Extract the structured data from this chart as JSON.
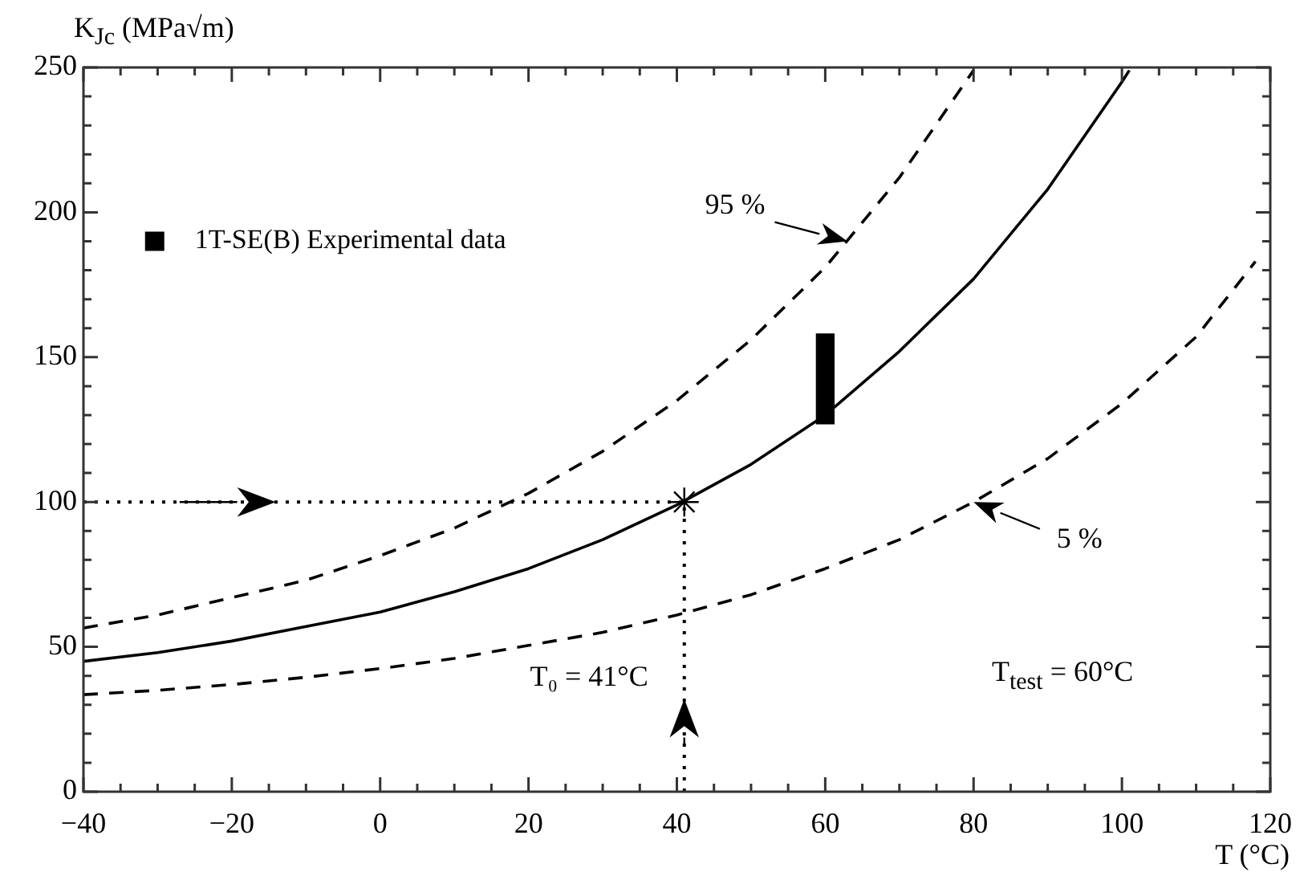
{
  "chart_data": {
    "type": "line",
    "xlabel": "T (°C)",
    "ylabel": "K$_{Jc}$ (MPa√m)",
    "xlim": [
      -40,
      120
    ],
    "ylim": [
      0,
      250
    ],
    "xticks": [
      {
        "value": -40,
        "label": "−40"
      },
      {
        "value": -35,
        "label": null
      },
      {
        "value": -30,
        "label": null
      },
      {
        "value": -25,
        "label": null
      },
      {
        "value": -20,
        "label": "−20"
      },
      {
        "value": -15,
        "label": null
      },
      {
        "value": -10,
        "label": null
      },
      {
        "value": -5,
        "label": null
      },
      0,
      {
        "value": 5,
        "label": null
      },
      {
        "value": 10,
        "label": null
      },
      {
        "value": 15,
        "label": null
      },
      20,
      {
        "value": 25,
        "label": null
      },
      {
        "value": 30,
        "label": null
      },
      {
        "value": 35,
        "label": null
      },
      40,
      {
        "value": 45,
        "label": null
      },
      {
        "value": 50,
        "label": null
      },
      {
        "value": 55,
        "label": null
      },
      60,
      {
        "value": 65,
        "label": null
      },
      {
        "value": 70,
        "label": null
      },
      {
        "value": 75,
        "label": null
      },
      80,
      {
        "value": 85,
        "label": null
      },
      {
        "value": 90,
        "label": null
      },
      {
        "value": 95,
        "label": null
      },
      100,
      {
        "value": 105,
        "label": null
      },
      {
        "value": 110,
        "label": null
      },
      {
        "value": 115,
        "label": null
      },
      120
    ],
    "yticks": [
      0,
      {
        "value": 10,
        "label": null
      },
      {
        "value": 20,
        "label": null
      },
      {
        "value": 30,
        "label": null
      },
      {
        "value": 40,
        "label": null
      },
      50,
      {
        "value": 60,
        "label": null
      },
      {
        "value": 70,
        "label": null
      },
      {
        "value": 80,
        "label": null
      },
      {
        "value": 90,
        "label": null
      },
      100,
      {
        "value": 110,
        "label": null
      },
      {
        "value": 120,
        "label": null
      },
      {
        "value": 130,
        "label": null
      },
      {
        "value": 140,
        "label": null
      },
      150,
      {
        "value": 160,
        "label": null
      },
      {
        "value": 170,
        "label": null
      },
      {
        "value": 180,
        "label": null
      },
      {
        "value": 190,
        "label": null
      },
      200,
      {
        "value": 210,
        "label": null
      },
      {
        "value": 220,
        "label": null
      },
      {
        "value": 230,
        "label": null
      },
      {
        "value": 240,
        "label": null
      },
      250
    ],
    "legend": "top left",
    "series": [
      {
        "color": "#000000",
        "line_style": "solid",
        "x": [
          -40,
          -30,
          -20,
          -10,
          0,
          10,
          20,
          30,
          40,
          50,
          60,
          70,
          80,
          90,
          100,
          101
        ],
        "values": [
          45,
          48,
          52,
          57,
          62,
          69,
          77,
          87,
          99,
          113,
          130,
          152,
          177,
          208,
          245,
          249
        ]
      },
      {
        "color": "#000000",
        "line_style": "dashed",
        "x": [
          -40,
          -30,
          -20,
          -10,
          0,
          10,
          20,
          30,
          40,
          50,
          60,
          70,
          80
        ],
        "values": [
          56.5,
          61,
          67,
          73,
          81.5,
          91,
          103,
          117.5,
          135,
          156,
          181,
          212,
          249
        ]
      },
      {
        "color": "#000000",
        "line_style": "dashed",
        "x": [
          -40,
          -30,
          -20,
          -10,
          0,
          10,
          20,
          30,
          40,
          50,
          60,
          70,
          80,
          90,
          100,
          110,
          118
        ],
        "values": [
          33.5,
          35,
          37,
          39.5,
          42.5,
          46,
          50.5,
          55,
          61,
          68,
          77,
          87,
          100,
          115,
          134,
          157,
          183
        ]
      },
      {
        "color": "#000000",
        "line_style": "dotted",
        "x": [
          -40,
          41
        ],
        "values": [
          100,
          100
        ]
      },
      {
        "color": "#000000",
        "line_style": "dotted",
        "x": [
          41,
          41
        ],
        "values": [
          0,
          100
        ]
      },
      {
        "type": "scatter",
        "color": "#000000",
        "marker": "cross",
        "x": [
          41
        ],
        "values": [
          100
        ]
      },
      {
        "type": "bar",
        "name": "1T-SE(B) Experimental data",
        "color": "#000000",
        "x": [
          60
        ],
        "base": [
          127
        ],
        "values": [
          31
        ]
      }
    ],
    "annotations": [
      {
        "text": "95 %",
        "x": 63,
        "y": 190
      },
      {
        "text": "5 %",
        "x": 80,
        "y": 100
      },
      "T₀ = 41°C",
      "T$_{test}$ = 60°C"
    ]
  }
}
